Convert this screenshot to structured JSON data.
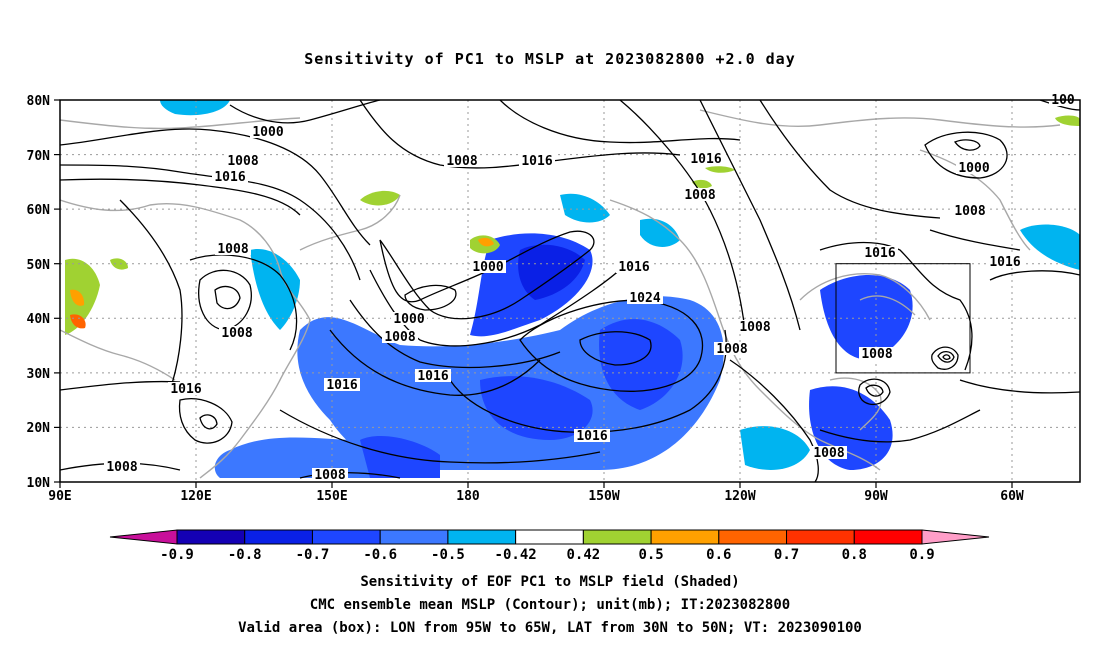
{
  "title": "Sensitivity of PC1 to MSLP at 2023082800 +2.0 day",
  "lat_labels": [
    "80N",
    "70N",
    "60N",
    "50N",
    "40N",
    "30N",
    "20N",
    "10N"
  ],
  "lon_labels": [
    "90E",
    "120E",
    "150E",
    "180",
    "150W",
    "120W",
    "90W",
    "60W"
  ],
  "contour_labels": [
    {
      "text": "1000"
    },
    {
      "text": "1008"
    },
    {
      "text": "1016"
    },
    {
      "text": "1008"
    },
    {
      "text": "1008"
    },
    {
      "text": "1016"
    },
    {
      "text": "1008"
    },
    {
      "text": "1000"
    },
    {
      "text": "1008"
    },
    {
      "text": "1016"
    },
    {
      "text": "1000"
    },
    {
      "text": "1016"
    },
    {
      "text": "1016"
    },
    {
      "text": "1000"
    },
    {
      "text": "1008"
    },
    {
      "text": "1024"
    },
    {
      "text": "1016"
    },
    {
      "text": "1008"
    },
    {
      "text": "1008"
    },
    {
      "text": "1016"
    },
    {
      "text": "1016"
    },
    {
      "text": "1008"
    },
    {
      "text": "1008"
    },
    {
      "text": "1016"
    },
    {
      "text": "1008"
    },
    {
      "text": "1008"
    },
    {
      "text": "1016"
    },
    {
      "text": "1008"
    },
    {
      "text": "100"
    }
  ],
  "colorbar": {
    "labels": [
      "-0.9",
      "-0.8",
      "-0.7",
      "-0.6",
      "-0.5",
      "-0.42",
      "0.42",
      "0.5",
      "0.6",
      "0.7",
      "0.8",
      "0.9"
    ],
    "colors": [
      "#1400b4",
      "#0a20e6",
      "#1e46ff",
      "#3c78ff",
      "#00b4f0",
      "#ffffff",
      "#a0d232",
      "#ffa000",
      "#ff6400",
      "#ff3200",
      "#ff0000"
    ],
    "low_end_color": "#c8109a",
    "high_end_color": "#ff9ec8"
  },
  "captions": {
    "line1": "Sensitivity of EOF PC1 to MSLP field (Shaded)",
    "line2": "CMC ensemble mean MSLP (Contour); unit(mb); IT:2023082800",
    "line3": "Valid area (box): LON from 95W to 65W, LAT from 30N to 50N; VT: 2023090100"
  }
}
